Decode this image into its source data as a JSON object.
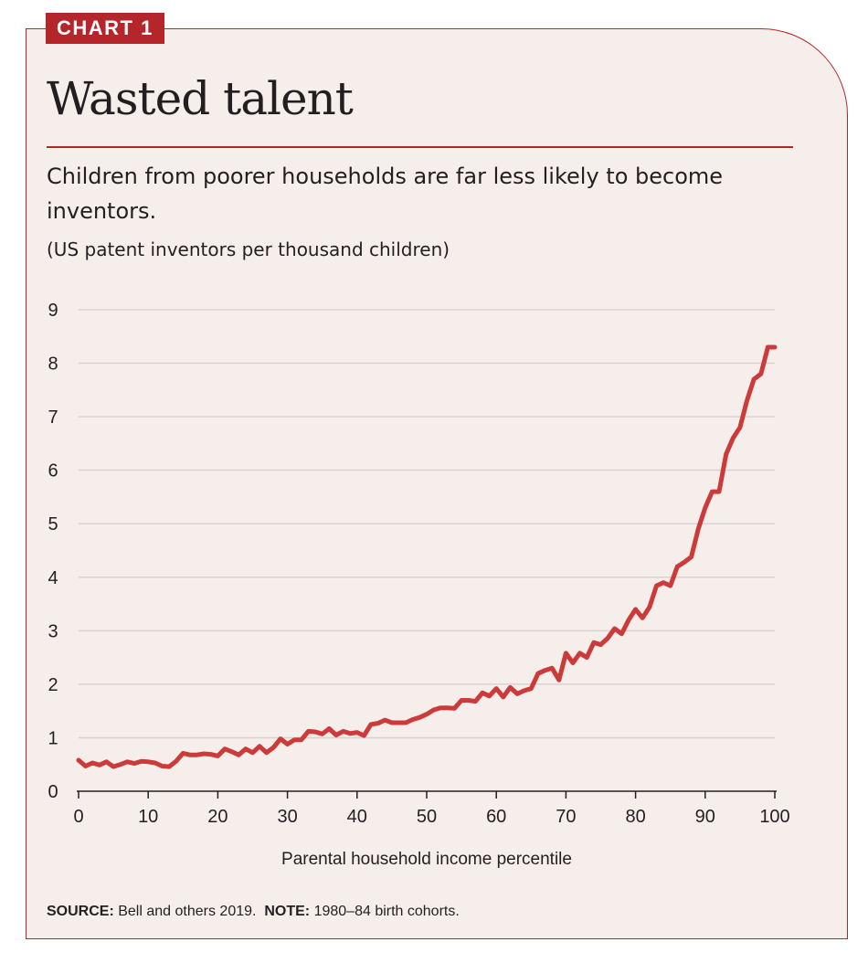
{
  "tag": "CHART 1",
  "title": "Wasted talent",
  "subtitle": "Children from poorer households are far less likely to become inventors.",
  "units_note": "(US patent inventors per thousand children)",
  "footer": {
    "source_label": "SOURCE:",
    "source_text": "Bell and others 2019.",
    "note_label": "NOTE:",
    "note_text": "1980–84 birth cohorts."
  },
  "colors": {
    "accent": "#b5262b",
    "line": "#cc3a3a",
    "background": "#f6eeeb",
    "gridline": "#d8d3d1",
    "text": "#231f20"
  },
  "chart_data": {
    "type": "line",
    "title": "Wasted talent",
    "xlabel": "Parental household income percentile",
    "ylabel": "",
    "xlim": [
      0,
      100
    ],
    "ylim": [
      0,
      9
    ],
    "xticks": [
      0,
      10,
      20,
      30,
      40,
      50,
      60,
      70,
      80,
      90,
      100
    ],
    "yticks": [
      0,
      1,
      2,
      3,
      4,
      5,
      6,
      7,
      8,
      9
    ],
    "grid": "horizontal",
    "legend": "none",
    "series": [
      {
        "x": [
          0,
          1,
          2,
          3,
          4,
          5,
          6,
          7,
          8,
          9,
          10,
          11,
          12,
          13,
          14,
          15,
          16,
          17,
          18,
          19,
          20,
          21,
          22,
          23,
          24,
          25,
          26,
          27,
          28,
          29,
          30,
          31,
          32,
          33,
          34,
          35,
          36,
          37,
          38,
          39,
          40,
          41,
          42,
          43,
          44,
          45,
          46,
          47,
          48,
          49,
          50,
          51,
          52,
          53,
          54,
          55,
          56,
          57,
          58,
          59,
          60,
          61,
          62,
          63,
          64,
          65,
          66,
          67,
          68,
          69,
          70,
          71,
          72,
          73,
          74,
          75,
          76,
          77,
          78,
          79,
          80,
          81,
          82,
          83,
          84,
          85,
          86,
          87,
          88,
          89,
          90,
          91,
          92,
          93,
          94,
          95,
          96,
          97,
          98,
          99,
          100
        ],
        "values": [
          0.58,
          0.47,
          0.53,
          0.49,
          0.55,
          0.46,
          0.5,
          0.55,
          0.52,
          0.56,
          0.55,
          0.53,
          0.47,
          0.46,
          0.56,
          0.71,
          0.68,
          0.68,
          0.7,
          0.69,
          0.66,
          0.79,
          0.74,
          0.68,
          0.79,
          0.72,
          0.84,
          0.72,
          0.82,
          0.98,
          0.88,
          0.96,
          0.96,
          1.12,
          1.11,
          1.07,
          1.17,
          1.05,
          1.12,
          1.08,
          1.1,
          1.04,
          1.25,
          1.27,
          1.33,
          1.28,
          1.28,
          1.28,
          1.34,
          1.38,
          1.44,
          1.52,
          1.56,
          1.56,
          1.55,
          1.7,
          1.7,
          1.68,
          1.84,
          1.78,
          1.92,
          1.76,
          1.94,
          1.82,
          1.88,
          1.92,
          2.2,
          2.26,
          2.3,
          2.08,
          2.58,
          2.4,
          2.58,
          2.5,
          2.78,
          2.74,
          2.86,
          3.04,
          2.94,
          3.2,
          3.4,
          3.24,
          3.44,
          3.84,
          3.9,
          3.84,
          4.2,
          4.28,
          4.38,
          4.9,
          5.3,
          5.6,
          5.6,
          6.3,
          6.6,
          6.8,
          7.3,
          7.7,
          7.8,
          8.3,
          8.3
        ]
      }
    ]
  }
}
